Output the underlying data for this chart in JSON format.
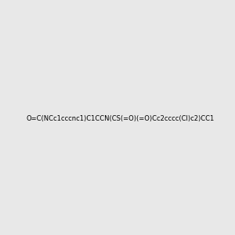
{
  "smiles": "O=C(NCc1cccnc1)C1CCN(CS(=O)(=O)Cc2cccc(Cl)c2)CC1",
  "image_size": 300,
  "background_color": "#e8e8e8",
  "bond_color": "#2d5a1b",
  "atom_colors": {
    "N": "#0000ff",
    "O": "#ff0000",
    "S": "#cccc00",
    "Cl": "#00aa00",
    "H": "#808080",
    "C": "#2d5a1b"
  },
  "title": ""
}
